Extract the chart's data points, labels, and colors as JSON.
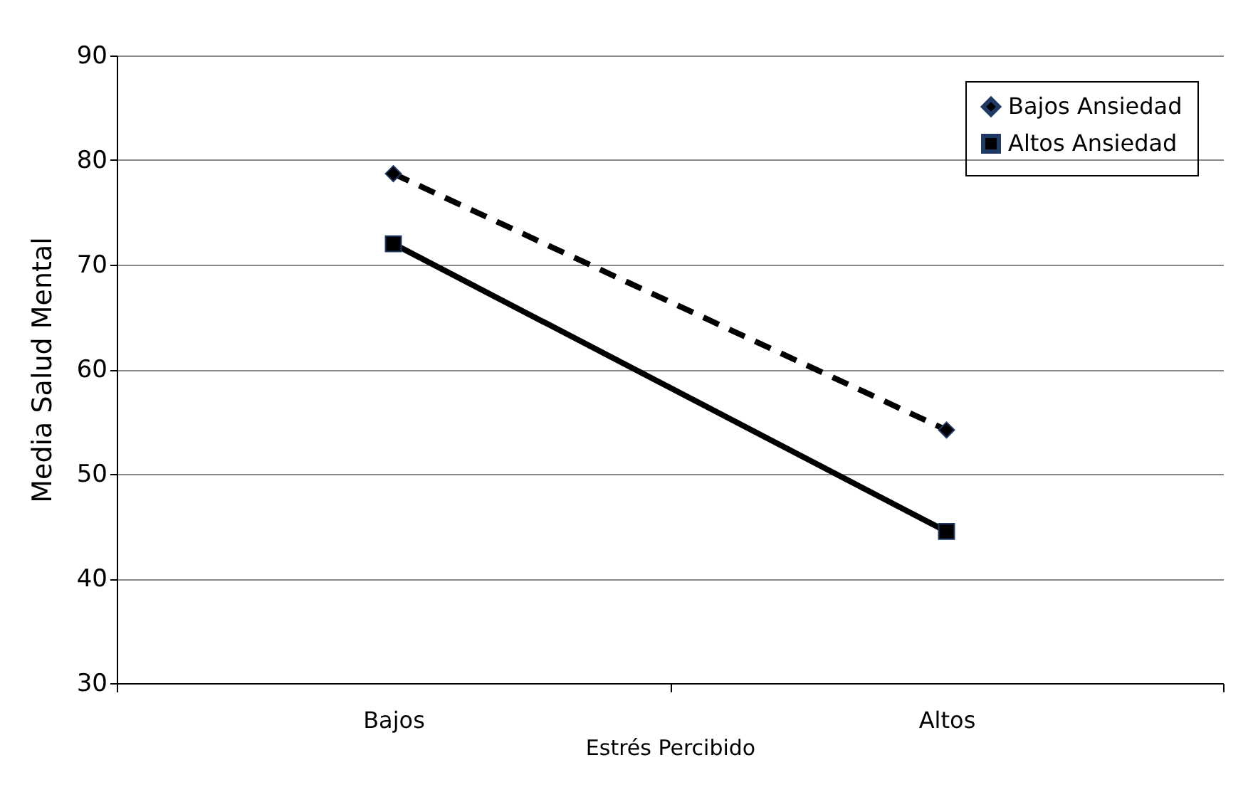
{
  "chart_data": {
    "type": "line",
    "xlabel": "Estrés Percibido",
    "ylabel": "Media Salud Mental",
    "categories": [
      "Bajos",
      "Altos"
    ],
    "series": [
      {
        "name": "Bajos Ansiedad",
        "color": "#000000",
        "values": [
          78.7,
          54.2
        ],
        "marker": "diamond",
        "line_style": "dashed"
      },
      {
        "name": "Altos Ansiedad",
        "color": "#000000",
        "values": [
          72.0,
          44.5
        ],
        "marker": "square",
        "line_style": "solid"
      }
    ],
    "ylim": [
      30,
      90
    ],
    "yticks": [
      30,
      40,
      50,
      60,
      70,
      80,
      90
    ],
    "grid": "y",
    "legend": "top right"
  }
}
